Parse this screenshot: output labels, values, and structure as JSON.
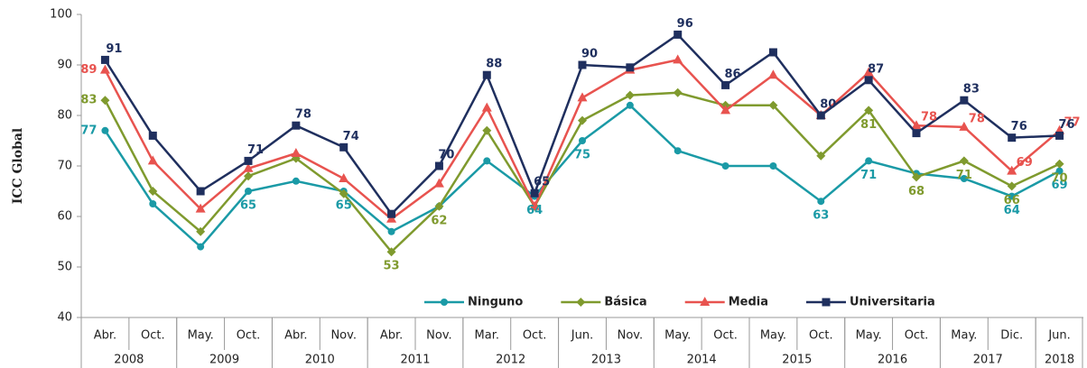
{
  "chart_data": {
    "type": "line",
    "y_label": "ICC Global",
    "categories": [
      "Abr.",
      "Oct.",
      "May.",
      "Oct.",
      "Abr.",
      "Nov.",
      "Abr.",
      "Nov.",
      "Mar.",
      "Oct.",
      "Jun.",
      "Nov.",
      "May.",
      "Oct.",
      "May.",
      "Oct.",
      "May.",
      "Oct.",
      "May.",
      "Dic.",
      "Jun."
    ],
    "groups": [
      {
        "label": "2008",
        "size": 2
      },
      {
        "label": "2009",
        "size": 2
      },
      {
        "label": "2010",
        "size": 2
      },
      {
        "label": "2011",
        "size": 2
      },
      {
        "label": "2012",
        "size": 2
      },
      {
        "label": "2013",
        "size": 2
      },
      {
        "label": "2014",
        "size": 2
      },
      {
        "label": "2015",
        "size": 2
      },
      {
        "label": "2016",
        "size": 2
      },
      {
        "label": "2017",
        "size": 2
      },
      {
        "label": "2018",
        "size": 1
      }
    ],
    "ylim": [
      40,
      100
    ],
    "yticks": [
      40,
      50,
      60,
      70,
      80,
      90,
      100
    ],
    "grid": false,
    "legend": "lower right",
    "series": [
      {
        "name": "Ninguno",
        "color": "#1a9aa6",
        "marker": "circle",
        "values": [
          77,
          62.5,
          54,
          65,
          67,
          65,
          57,
          62,
          71,
          64,
          75,
          82,
          73,
          70,
          70,
          63,
          71,
          68.5,
          67.5,
          64,
          69
        ],
        "value_labels": [
          "77",
          null,
          null,
          "65",
          null,
          "65",
          null,
          null,
          null,
          "64",
          "75",
          null,
          null,
          null,
          null,
          "63",
          "71",
          null,
          null,
          "64",
          "69"
        ]
      },
      {
        "name": "Básica",
        "color": "#7f9a2e",
        "marker": "diamond",
        "values": [
          83,
          65,
          57,
          68,
          71.5,
          64.5,
          53,
          62,
          77,
          62,
          79,
          84,
          84.5,
          82,
          82,
          72,
          81,
          67.8,
          71,
          66,
          70.4
        ],
        "value_labels": [
          "83",
          null,
          null,
          null,
          null,
          null,
          "53",
          "62",
          null,
          null,
          null,
          null,
          null,
          null,
          null,
          null,
          "81",
          "68",
          "71",
          "66",
          "70"
        ]
      },
      {
        "name": "Media",
        "color": "#e8534f",
        "marker": "triangle",
        "values": [
          89,
          71,
          61.5,
          69.5,
          72.5,
          67.5,
          59.5,
          66.5,
          81.5,
          62,
          83.5,
          89,
          91,
          81,
          88,
          80,
          88.5,
          78,
          77.7,
          69,
          77
        ],
        "value_labels": [
          "89",
          null,
          null,
          null,
          null,
          null,
          null,
          null,
          null,
          null,
          null,
          null,
          null,
          null,
          null,
          null,
          null,
          "78",
          "78",
          "69",
          "77"
        ]
      },
      {
        "name": "Universitaria",
        "color": "#1f2f5e",
        "marker": "square",
        "values": [
          91,
          76,
          65,
          71,
          78,
          73.7,
          60.5,
          70,
          88,
          64.6,
          90,
          89.5,
          96,
          86,
          92.5,
          80,
          87,
          76.5,
          83,
          75.6,
          76
        ],
        "value_labels": [
          "91",
          null,
          null,
          "71",
          "78",
          "74",
          null,
          "70",
          "88",
          "65",
          "90",
          null,
          "96",
          "86",
          null,
          "80",
          "87",
          null,
          "83",
          "76",
          "76"
        ]
      }
    ]
  }
}
